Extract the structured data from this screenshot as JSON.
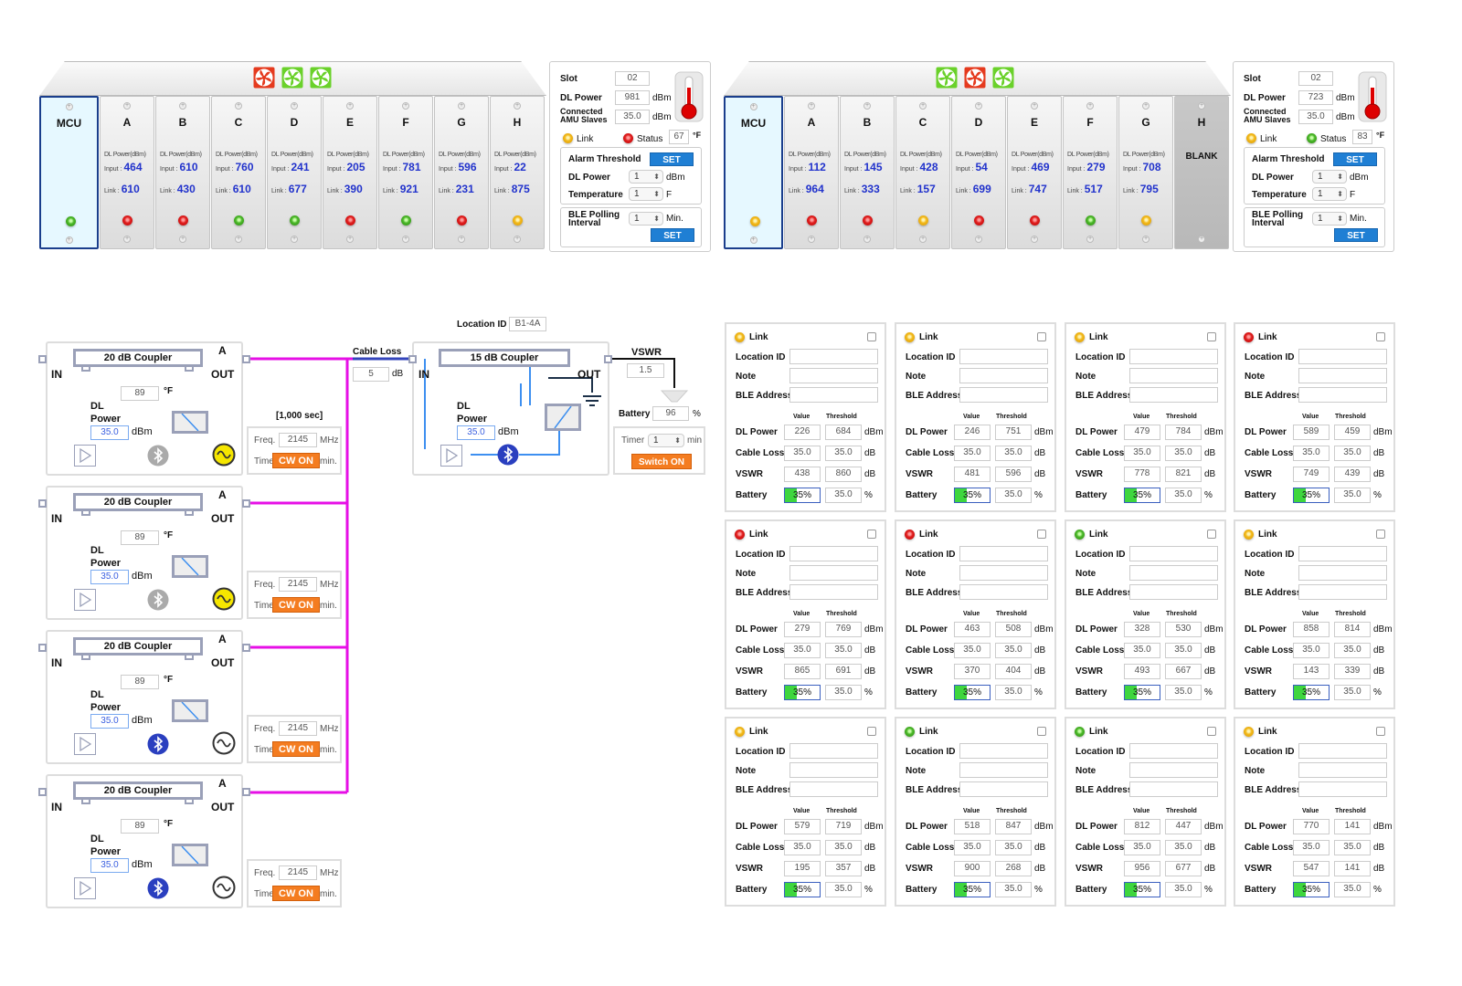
{
  "racks": [
    {
      "fans": [
        "red",
        "green",
        "green"
      ],
      "labels": {
        "dl": "DL Power(dBm)",
        "input": "Input :",
        "link": "Link :"
      },
      "slots": [
        {
          "name": "MCU",
          "status": "green"
        },
        {
          "name": "A",
          "input": "464",
          "link": "610",
          "status": "red"
        },
        {
          "name": "B",
          "input": "610",
          "link": "430",
          "status": "red"
        },
        {
          "name": "C",
          "input": "760",
          "link": "610",
          "status": "green"
        },
        {
          "name": "D",
          "input": "241",
          "link": "677",
          "status": "green"
        },
        {
          "name": "E",
          "input": "205",
          "link": "390",
          "status": "red"
        },
        {
          "name": "F",
          "input": "781",
          "link": "921",
          "status": "green"
        },
        {
          "name": "G",
          "input": "596",
          "link": "231",
          "status": "red"
        },
        {
          "name": "H",
          "input": "22",
          "link": "875",
          "status": "yellow"
        }
      ],
      "info": {
        "slot_label": "Slot",
        "slot": "02",
        "dl_label": "DL Power",
        "dl": "981",
        "dl_unit": "dBm",
        "amu_label": "Connected AMU Slaves",
        "amu": "35.0",
        "amu_unit": "dBm",
        "link_label": "Link",
        "link_status": "yellow",
        "status_label": "Status",
        "status": "red",
        "temp": "67",
        "temp_unit": "°F",
        "alarm_label": "Alarm Threshold",
        "set": "SET",
        "alarm_dl_label": "DL Power",
        "alarm_dl": "1",
        "alarm_dl_unit": "dBm",
        "alarm_temp_label": "Temperature",
        "alarm_temp": "1",
        "alarm_temp_unit": "F",
        "ble_label": "BLE Polling Interval",
        "ble": "1",
        "ble_unit": "Min."
      }
    },
    {
      "fans": [
        "green",
        "red",
        "green"
      ],
      "labels": {
        "dl": "DL Power(dBm)",
        "input": "Input :",
        "link": "Link :"
      },
      "slots": [
        {
          "name": "MCU",
          "status": "yellow"
        },
        {
          "name": "A",
          "input": "112",
          "link": "964",
          "status": "red"
        },
        {
          "name": "B",
          "input": "145",
          "link": "333",
          "status": "red"
        },
        {
          "name": "C",
          "input": "428",
          "link": "157",
          "status": "yellow"
        },
        {
          "name": "D",
          "input": "54",
          "link": "699",
          "status": "red"
        },
        {
          "name": "E",
          "input": "469",
          "link": "747",
          "status": "red"
        },
        {
          "name": "F",
          "input": "279",
          "link": "517",
          "status": "green"
        },
        {
          "name": "G",
          "input": "708",
          "link": "795",
          "status": "yellow"
        },
        {
          "name": "H",
          "blank": "BLANK"
        }
      ],
      "info": {
        "slot_label": "Slot",
        "slot": "02",
        "dl_label": "DL Power",
        "dl": "723",
        "dl_unit": "dBm",
        "amu_label": "Connected AMU Slaves",
        "amu": "35.0",
        "amu_unit": "dBm",
        "link_label": "Link",
        "link_status": "yellow",
        "status_label": "Status",
        "status": "green",
        "temp": "83",
        "temp_unit": "°F",
        "alarm_label": "Alarm Threshold",
        "set": "SET",
        "alarm_dl_label": "DL Power",
        "alarm_dl": "1",
        "alarm_dl_unit": "dBm",
        "alarm_temp_label": "Temperature",
        "alarm_temp": "1",
        "alarm_temp_unit": "F",
        "ble_label": "BLE Polling Interval",
        "ble": "1",
        "ble_unit": "Min."
      }
    }
  ],
  "couplers": {
    "labels": {
      "title": "20 dB Coupler",
      "port": "A",
      "in": "IN",
      "out": "OUT",
      "temp_unit": "°F",
      "dl": "DL Power",
      "dbm": "dBm",
      "freq": "Freq.",
      "mhz": "MHz",
      "time": "Time",
      "min": "min.",
      "cw": "CW ON"
    },
    "duration": "[1,000 sec]",
    "items": [
      {
        "temp": "89",
        "dl": "35.0",
        "freq": "2145",
        "bt": "inactive",
        "signal": "active"
      },
      {
        "temp": "89",
        "dl": "35.0",
        "freq": "2145",
        "bt": "inactive",
        "signal": "active"
      },
      {
        "temp": "89",
        "dl": "35.0",
        "freq": "2145",
        "bt": "active",
        "signal": "inactive"
      },
      {
        "temp": "89",
        "dl": "35.0",
        "freq": "2145",
        "bt": "active",
        "signal": "inactive"
      }
    ]
  },
  "remote": {
    "cable_loss_label": "Cable Loss",
    "cable_loss": "5",
    "cable_loss_unit": "dB",
    "location_label": "Location ID",
    "location": "B1-4A",
    "title": "15 dB Coupler",
    "in": "IN",
    "out": "OUT",
    "dl_label": "DL Power",
    "dl": "35.0",
    "dl_unit": "dBm",
    "vswr_label": "VSWR",
    "vswr": "1.5",
    "battery_label": "Battery",
    "battery": "96",
    "battery_unit": "%",
    "timer_label": "Timer",
    "timer": "1",
    "timer_unit": "min",
    "switch": "Switch ON"
  },
  "cards": {
    "labels": {
      "link": "Link",
      "location": "Location ID",
      "note": "Note",
      "ble": "BLE Address",
      "value": "Value",
      "threshold": "Threshold",
      "dl": "DL Power",
      "cable": "Cable Loss",
      "vswr": "VSWR",
      "battery": "Battery",
      "dbm": "dBm",
      "db": "dB",
      "pct": "%"
    },
    "items": [
      {
        "status": "yellow",
        "dl": "226",
        "dl_t": "684",
        "cable": "35.0",
        "cable_t": "35.0",
        "vswr": "438",
        "vswr_t": "860",
        "battery": "35%",
        "battery_pct": 35,
        "battery_t": "35.0"
      },
      {
        "status": "yellow",
        "dl": "246",
        "dl_t": "751",
        "cable": "35.0",
        "cable_t": "35.0",
        "vswr": "481",
        "vswr_t": "596",
        "battery": "35%",
        "battery_pct": 35,
        "battery_t": "35.0"
      },
      {
        "status": "yellow",
        "dl": "479",
        "dl_t": "784",
        "cable": "35.0",
        "cable_t": "35.0",
        "vswr": "778",
        "vswr_t": "821",
        "battery": "35%",
        "battery_pct": 35,
        "battery_t": "35.0"
      },
      {
        "status": "red",
        "dl": "589",
        "dl_t": "459",
        "cable": "35.0",
        "cable_t": "35.0",
        "vswr": "749",
        "vswr_t": "439",
        "battery": "35%",
        "battery_pct": 35,
        "battery_t": "35.0"
      },
      {
        "status": "red",
        "dl": "279",
        "dl_t": "769",
        "cable": "35.0",
        "cable_t": "35.0",
        "vswr": "865",
        "vswr_t": "691",
        "battery": "35%",
        "battery_pct": 35,
        "battery_t": "35.0"
      },
      {
        "status": "red",
        "dl": "463",
        "dl_t": "508",
        "cable": "35.0",
        "cable_t": "35.0",
        "vswr": "370",
        "vswr_t": "404",
        "battery": "35%",
        "battery_pct": 35,
        "battery_t": "35.0"
      },
      {
        "status": "green",
        "dl": "328",
        "dl_t": "530",
        "cable": "35.0",
        "cable_t": "35.0",
        "vswr": "493",
        "vswr_t": "667",
        "battery": "35%",
        "battery_pct": 35,
        "battery_t": "35.0"
      },
      {
        "status": "yellow",
        "dl": "858",
        "dl_t": "814",
        "cable": "35.0",
        "cable_t": "35.0",
        "vswr": "143",
        "vswr_t": "339",
        "battery": "35%",
        "battery_pct": 35,
        "battery_t": "35.0"
      },
      {
        "status": "yellow",
        "dl": "579",
        "dl_t": "719",
        "cable": "35.0",
        "cable_t": "35.0",
        "vswr": "195",
        "vswr_t": "357",
        "battery": "35%",
        "battery_pct": 35,
        "battery_t": "35.0"
      },
      {
        "status": "green",
        "dl": "518",
        "dl_t": "847",
        "cable": "35.0",
        "cable_t": "35.0",
        "vswr": "900",
        "vswr_t": "268",
        "battery": "35%",
        "battery_pct": 35,
        "battery_t": "35.0"
      },
      {
        "status": "green",
        "dl": "812",
        "dl_t": "447",
        "cable": "35.0",
        "cable_t": "35.0",
        "vswr": "956",
        "vswr_t": "677",
        "battery": "35%",
        "battery_pct": 35,
        "battery_t": "35.0"
      },
      {
        "status": "yellow",
        "dl": "770",
        "dl_t": "141",
        "cable": "35.0",
        "cable_t": "35.0",
        "vswr": "547",
        "vswr_t": "141",
        "battery": "35%",
        "battery_pct": 35,
        "battery_t": "35.0"
      }
    ]
  },
  "colors": {
    "red": "#e53a1e",
    "green": "#6ad12a",
    "accent": "#1f7fd4",
    "orange": "#f47c20",
    "magenta": "#e60fe6",
    "line": "#3d8ff0"
  }
}
